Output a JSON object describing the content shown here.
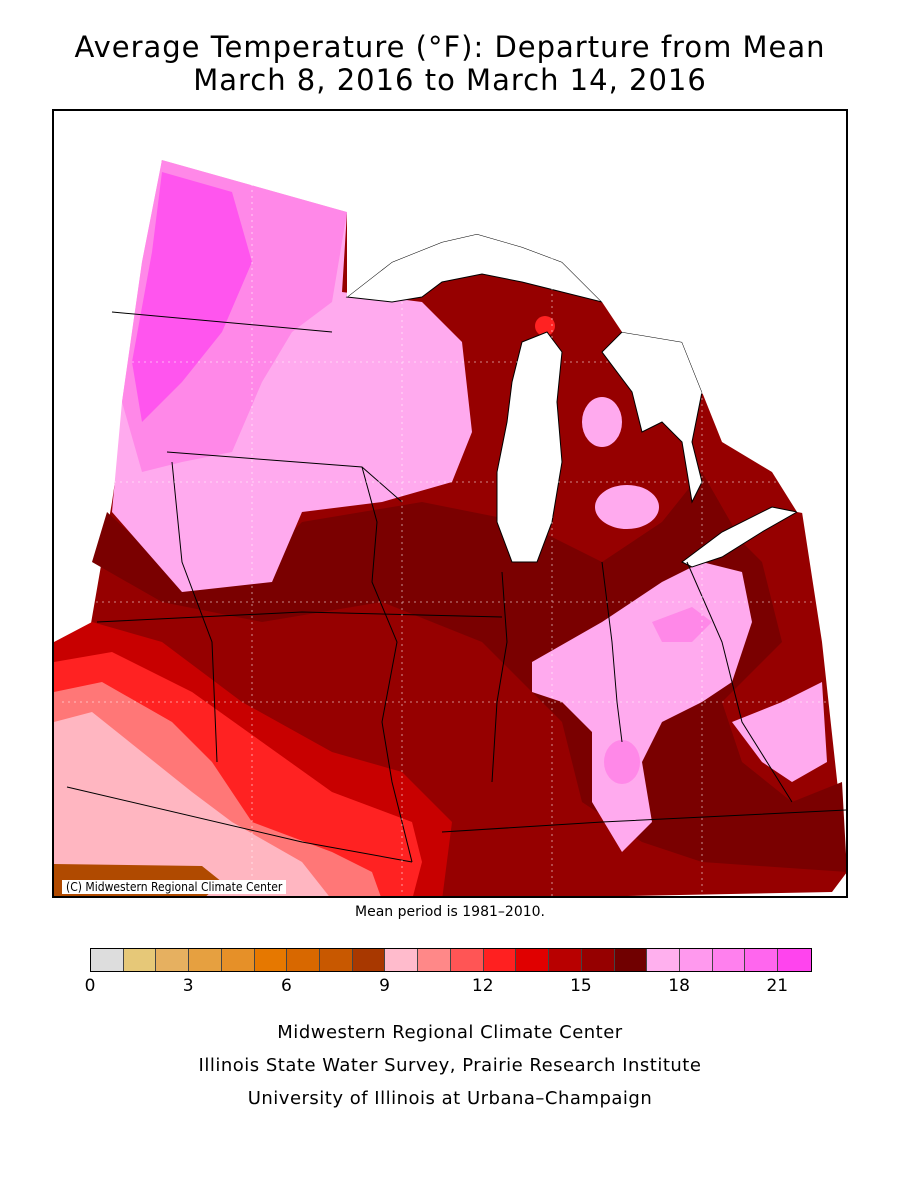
{
  "title": {
    "line1": "Average Temperature (°F): Departure from Mean",
    "line2": "March 8, 2016 to March 14, 2016"
  },
  "map": {
    "copyright": "(C) Midwestern Regional Climate Center",
    "colors": {
      "pink_light": "#ffaaee",
      "pink_mid": "#ff88e8",
      "magenta": "#ff55ee",
      "dark_red": "#7a0000",
      "red_dark2": "#960000",
      "red_mid": "#c80000",
      "red": "#ff2222",
      "salmon": "#ff7777",
      "pink_salmon": "#ffb6c1",
      "brown": "#b04a00",
      "water": "#ffffff"
    }
  },
  "mean_period": "Mean period is 1981–2010.",
  "legend": {
    "colors": [
      "#dddddd",
      "#e6c878",
      "#e6b060",
      "#e6a040",
      "#e69028",
      "#e67800",
      "#d86800",
      "#c85800",
      "#a83800",
      "#ffbbcc",
      "#ff8888",
      "#ff5555",
      "#ff2020",
      "#e00000",
      "#b80000",
      "#960000",
      "#700000",
      "#ffb0ee",
      "#ff99ee",
      "#ff80ee",
      "#ff66ee",
      "#ff44ee"
    ],
    "ticks": [
      "0",
      "3",
      "6",
      "9",
      "12",
      "15",
      "18",
      "21"
    ]
  },
  "credits": {
    "line1": "Midwestern Regional Climate Center",
    "line2": "Illinois State Water Survey, Prairie Research Institute",
    "line3": "University of Illinois at Urbana–Champaign"
  }
}
